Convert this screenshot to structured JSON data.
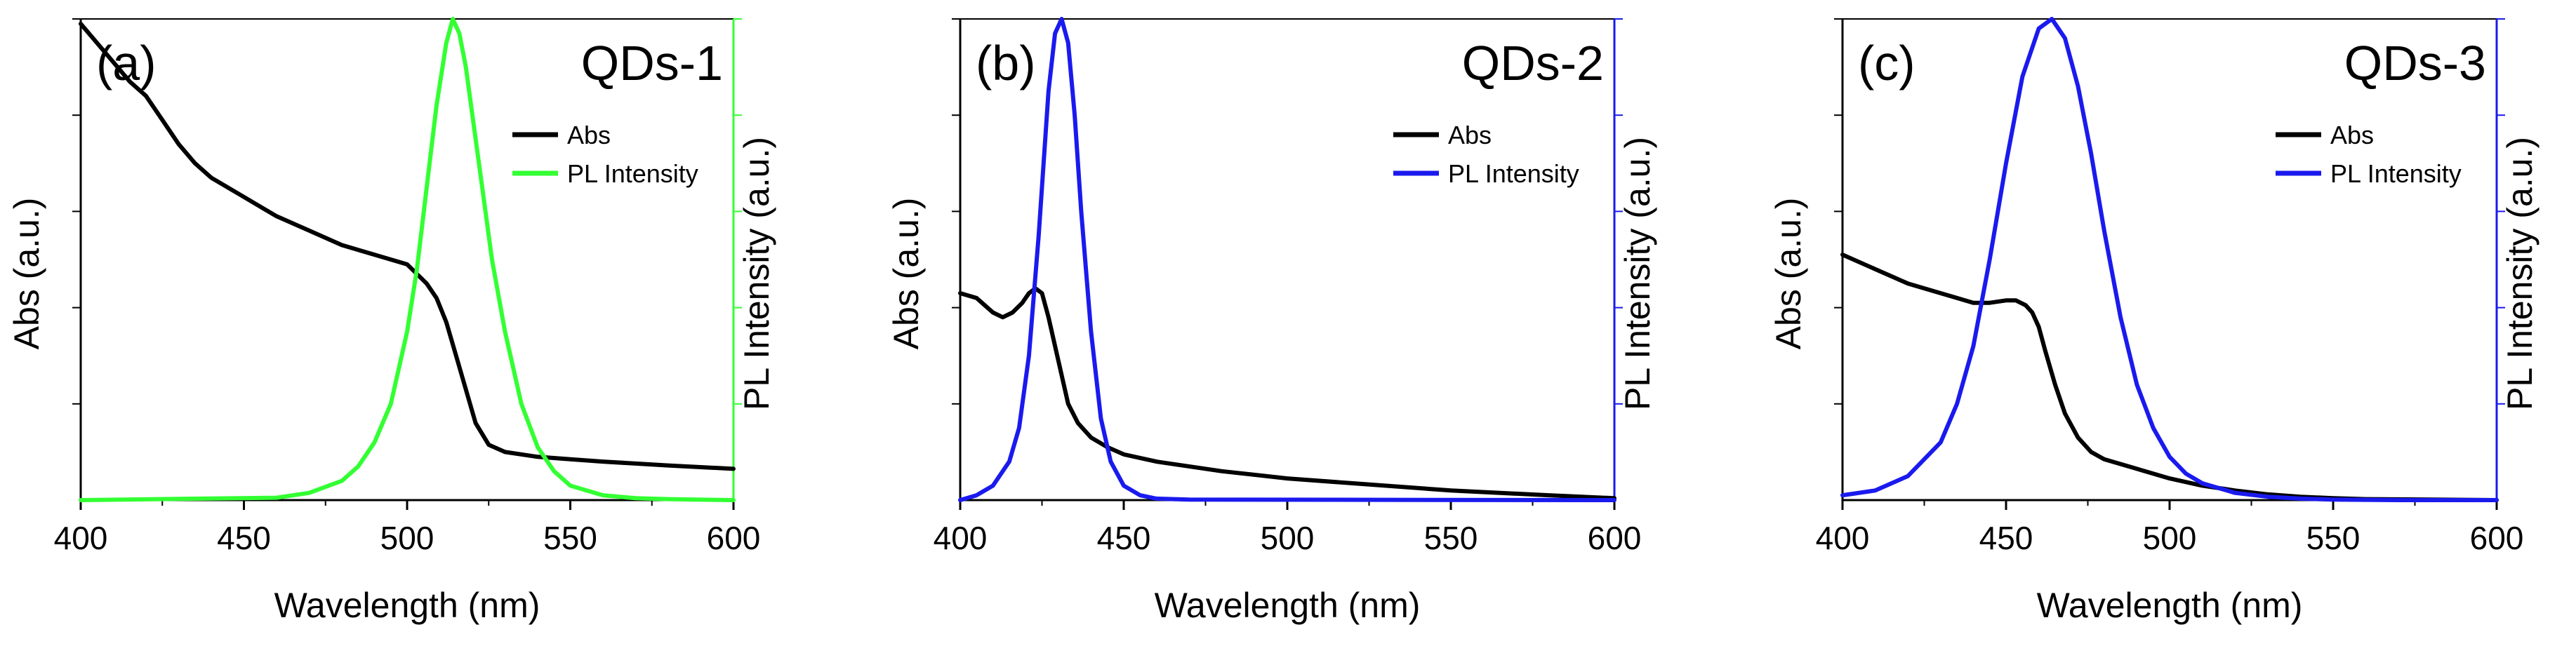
{
  "chart_data": [
    {
      "type": "line",
      "panel_label": "(a)",
      "title": "QDs-1",
      "xlabel": "Wavelength (nm)",
      "ylabel": "Abs (a.u.)",
      "y2label": "PL Intensity (a.u.)",
      "xlim": [
        400,
        600
      ],
      "xticks": [
        400,
        450,
        500,
        550,
        600
      ],
      "ylim": [
        0,
        1
      ],
      "y2lim": [
        0,
        1
      ],
      "legend_position": "top-right",
      "series": [
        {
          "name": "Abs",
          "color": "#000000",
          "axis": "left",
          "x": [
            400,
            405,
            410,
            415,
            420,
            425,
            430,
            435,
            440,
            450,
            460,
            470,
            480,
            490,
            500,
            503,
            506,
            509,
            512,
            515,
            518,
            521,
            525,
            530,
            540,
            550,
            560,
            580,
            600
          ],
          "y": [
            0.99,
            0.95,
            0.91,
            0.87,
            0.84,
            0.79,
            0.74,
            0.7,
            0.67,
            0.63,
            0.59,
            0.56,
            0.53,
            0.51,
            0.49,
            0.47,
            0.45,
            0.42,
            0.37,
            0.3,
            0.23,
            0.16,
            0.115,
            0.1,
            0.09,
            0.085,
            0.08,
            0.072,
            0.065
          ]
        },
        {
          "name": "PL Intensity",
          "color": "#33ff33",
          "axis": "right",
          "x": [
            400,
            460,
            470,
            480,
            485,
            490,
            495,
            500,
            503,
            506,
            509,
            512,
            514,
            516,
            518,
            520,
            523,
            526,
            530,
            535,
            540,
            545,
            550,
            560,
            570,
            580,
            600
          ],
          "y": [
            0,
            0.005,
            0.015,
            0.04,
            0.07,
            0.12,
            0.2,
            0.35,
            0.48,
            0.65,
            0.82,
            0.95,
            1.0,
            0.97,
            0.9,
            0.8,
            0.65,
            0.5,
            0.35,
            0.2,
            0.11,
            0.06,
            0.03,
            0.01,
            0.004,
            0.002,
            0
          ]
        }
      ]
    },
    {
      "type": "line",
      "panel_label": "(b)",
      "title": "QDs-2",
      "xlabel": "Wavelength (nm)",
      "ylabel": "Abs (a.u.)",
      "y2label": "PL Intensity (a.u.)",
      "xlim": [
        400,
        600
      ],
      "xticks": [
        400,
        450,
        500,
        550,
        600
      ],
      "ylim": [
        0,
        1
      ],
      "y2lim": [
        0,
        1
      ],
      "legend_position": "top-right",
      "series": [
        {
          "name": "Abs",
          "color": "#000000",
          "axis": "left",
          "x": [
            400,
            405,
            410,
            413,
            416,
            419,
            421,
            423,
            425,
            427,
            430,
            433,
            436,
            440,
            445,
            450,
            460,
            480,
            500,
            520,
            550,
            580,
            600
          ],
          "y": [
            0.43,
            0.42,
            0.39,
            0.38,
            0.39,
            0.41,
            0.43,
            0.44,
            0.43,
            0.38,
            0.29,
            0.2,
            0.16,
            0.13,
            0.11,
            0.095,
            0.08,
            0.06,
            0.045,
            0.035,
            0.02,
            0.01,
            0.004
          ]
        },
        {
          "name": "PL Intensity",
          "color": "#1a1aee",
          "axis": "right",
          "x": [
            400,
            405,
            410,
            415,
            418,
            421,
            424,
            427,
            429,
            431,
            433,
            435,
            437,
            440,
            443,
            446,
            450,
            455,
            460,
            470,
            600
          ],
          "y": [
            0.0,
            0.01,
            0.03,
            0.08,
            0.15,
            0.3,
            0.55,
            0.85,
            0.97,
            1.0,
            0.95,
            0.8,
            0.6,
            0.35,
            0.17,
            0.08,
            0.03,
            0.01,
            0.003,
            0.001,
            0
          ]
        }
      ]
    },
    {
      "type": "line",
      "panel_label": "(c)",
      "title": "QDs-3",
      "xlabel": "Wavelength (nm)",
      "ylabel": "Abs (a.u.)",
      "y2label": "PL Intensity (a.u.)",
      "xlim": [
        400,
        600
      ],
      "xticks": [
        400,
        450,
        500,
        550,
        600
      ],
      "ylim": [
        0,
        1
      ],
      "y2lim": [
        0,
        1
      ],
      "legend_position": "top-right",
      "series": [
        {
          "name": "Abs",
          "color": "#000000",
          "axis": "left",
          "x": [
            400,
            410,
            420,
            430,
            440,
            445,
            450,
            453,
            456,
            458,
            460,
            462,
            465,
            468,
            472,
            476,
            480,
            490,
            500,
            510,
            520,
            530,
            540,
            550,
            560,
            580,
            600
          ],
          "y": [
            0.51,
            0.48,
            0.45,
            0.43,
            0.41,
            0.41,
            0.415,
            0.415,
            0.405,
            0.39,
            0.36,
            0.31,
            0.24,
            0.18,
            0.13,
            0.1,
            0.085,
            0.065,
            0.045,
            0.03,
            0.02,
            0.012,
            0.007,
            0.004,
            0.002,
            0.001,
            0
          ]
        },
        {
          "name": "PL Intensity",
          "color": "#1a1aee",
          "axis": "right",
          "x": [
            400,
            410,
            420,
            430,
            435,
            440,
            445,
            450,
            455,
            460,
            464,
            468,
            472,
            476,
            480,
            485,
            490,
            495,
            500,
            505,
            510,
            520,
            530,
            540,
            550,
            570,
            600
          ],
          "y": [
            0.01,
            0.02,
            0.05,
            0.12,
            0.2,
            0.32,
            0.5,
            0.7,
            0.88,
            0.98,
            1.0,
            0.96,
            0.86,
            0.72,
            0.56,
            0.38,
            0.24,
            0.15,
            0.09,
            0.055,
            0.035,
            0.015,
            0.007,
            0.003,
            0.001,
            0,
            0
          ]
        }
      ]
    }
  ]
}
